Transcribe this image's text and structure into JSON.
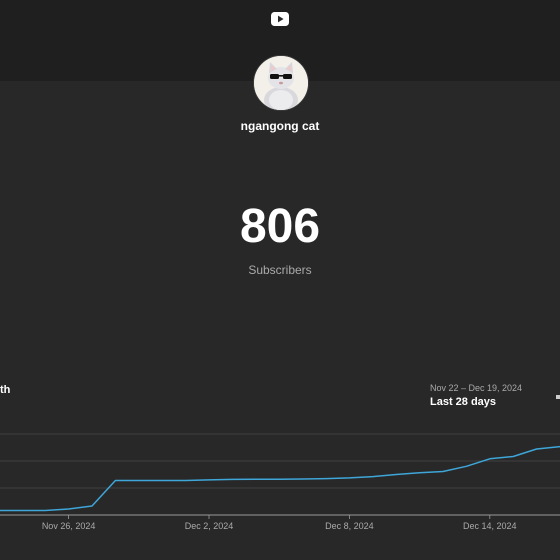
{
  "header": {
    "logo_icon": "youtube-logo-icon"
  },
  "channel": {
    "name": "ngangong cat",
    "avatar_icon": "cat-with-sunglasses-avatar"
  },
  "stats": {
    "subscriber_count": "806",
    "subscriber_label": "Subscribers"
  },
  "left_label_clipped": "th",
  "range": {
    "dates": "Nov 22 – Dec 19, 2024",
    "label": "Last 28 days"
  },
  "colors": {
    "background": "#282828",
    "top_band": "#1f1f1f",
    "line": "#3ea6d8",
    "grid": "#4a4a4a",
    "muted_text": "#aaaaaa"
  },
  "chart_data": {
    "type": "line",
    "x": [
      "Nov 22",
      "Nov 23",
      "Nov 24",
      "Nov 25",
      "Nov 26",
      "Nov 27",
      "Nov 28",
      "Nov 29",
      "Nov 30",
      "Dec 1",
      "Dec 2",
      "Dec 3",
      "Dec 4",
      "Dec 5",
      "Dec 6",
      "Dec 7",
      "Dec 8",
      "Dec 9",
      "Dec 10",
      "Dec 11",
      "Dec 12",
      "Dec 13",
      "Dec 14",
      "Dec 15",
      "Dec 16",
      "Dec 17",
      "Dec 18",
      "Dec 19"
    ],
    "series": [
      {
        "name": "",
        "values": [
          738,
          738,
          738,
          738,
          739,
          741,
          758,
          758,
          758,
          758,
          758.4,
          758.7,
          758.8,
          758.9,
          759,
          759.3,
          759.7,
          760.6,
          762,
          763.2,
          764,
          767.5,
          772.5,
          774,
          779,
          780.6,
          781.8,
          783.5
        ]
      }
    ],
    "tick_labels": [
      "Nov 26, 2024",
      "Dec 2, 2024",
      "Dec 8, 2024",
      "Dec 14, 2024",
      "Dec 2"
    ],
    "ylim": [
      735,
      795
    ],
    "grid": true
  }
}
